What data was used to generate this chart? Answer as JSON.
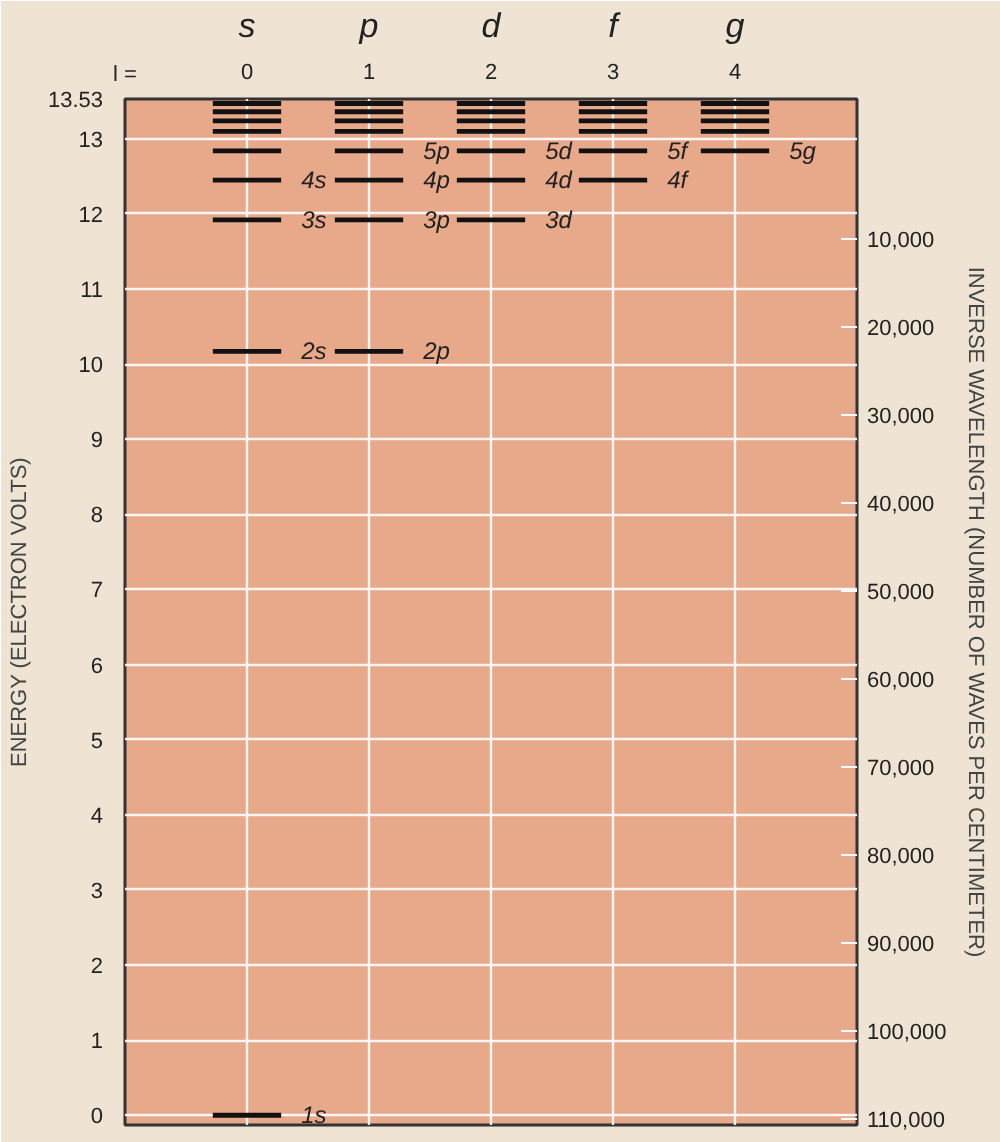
{
  "chart_data": {
    "type": "line",
    "ylabel": "ENERGY (ELECTRON VOLTS)",
    "y2label": "INVERSE WAVELENGTH (NUMBER OF WAVES PER CENTIMETER)",
    "xlabel": "l =",
    "annotations": [
      "s",
      "p",
      "d",
      "f",
      "g"
    ],
    "xlim": [
      -1,
      5
    ],
    "xticks": [
      0,
      1,
      2,
      3,
      4
    ],
    "ylim": [
      -0.13,
      13.53
    ],
    "yticks": [
      0,
      1,
      2,
      3,
      4,
      5,
      6,
      7,
      8,
      9,
      10,
      11,
      12,
      13,
      13.53
    ],
    "y2lim": [
      110700,
      -5860
    ],
    "y2ticks": [
      {
        "value": 10000,
        "label": "10,000"
      },
      {
        "value": 20000,
        "label": "20,000"
      },
      {
        "value": 30000,
        "label": "30,000"
      },
      {
        "value": 40000,
        "label": "40,000"
      },
      {
        "value": 50000,
        "label": "50,000"
      },
      {
        "value": 60000,
        "label": "60,000"
      },
      {
        "value": 70000,
        "label": "70,000"
      },
      {
        "value": 80000,
        "label": "80,000"
      },
      {
        "value": 90000,
        "label": "90,000"
      },
      {
        "value": 100000,
        "label": "100,000"
      },
      {
        "value": 110000,
        "label": "110,000"
      }
    ],
    "grid": true,
    "line_style": "solid",
    "series": [
      {
        "name": "1s",
        "color": "#111111",
        "x": [
          -0.28,
          0.28
        ],
        "values": [
          0,
          0
        ]
      },
      {
        "name": "2s",
        "color": "#111111",
        "x": [
          -0.28,
          0.28
        ],
        "values": [
          10.17,
          10.17
        ]
      },
      {
        "name": "2p",
        "color": "#111111",
        "x": [
          0.72,
          1.28
        ],
        "values": [
          10.17,
          10.17
        ]
      },
      {
        "name": "3s",
        "color": "#111111",
        "x": [
          -0.28,
          0.28
        ],
        "values": [
          11.92,
          11.92
        ]
      },
      {
        "name": "3p",
        "color": "#111111",
        "x": [
          0.72,
          1.28
        ],
        "values": [
          11.92,
          11.92
        ]
      },
      {
        "name": "3d",
        "color": "#111111",
        "x": [
          1.72,
          2.28
        ],
        "values": [
          11.92,
          11.92
        ]
      },
      {
        "name": "4s",
        "color": "#111111",
        "x": [
          -0.28,
          0.28
        ],
        "values": [
          12.45,
          12.45
        ]
      },
      {
        "name": "4p",
        "color": "#111111",
        "x": [
          0.72,
          1.28
        ],
        "values": [
          12.45,
          12.45
        ]
      },
      {
        "name": "4d",
        "color": "#111111",
        "x": [
          1.72,
          2.28
        ],
        "values": [
          12.45,
          12.45
        ]
      },
      {
        "name": "4f",
        "color": "#111111",
        "x": [
          2.72,
          3.28
        ],
        "values": [
          12.45,
          12.45
        ]
      },
      {
        "color": "#111111",
        "x": [
          -0.28,
          0.28
        ],
        "values": [
          12.84,
          12.84
        ]
      },
      {
        "name": "5p",
        "color": "#111111",
        "x": [
          0.72,
          1.28
        ],
        "values": [
          12.84,
          12.84
        ]
      },
      {
        "name": "5d",
        "color": "#111111",
        "x": [
          1.72,
          2.28
        ],
        "values": [
          12.84,
          12.84
        ]
      },
      {
        "name": "5f",
        "color": "#111111",
        "x": [
          2.72,
          3.28
        ],
        "values": [
          12.84,
          12.84
        ]
      },
      {
        "name": "5g",
        "color": "#111111",
        "x": [
          3.72,
          4.28
        ],
        "values": [
          12.84,
          12.84
        ]
      },
      {
        "color": "#111111",
        "x": [
          -0.28,
          0.28
        ],
        "values": [
          13.1,
          13.1
        ]
      },
      {
        "color": "#111111",
        "x": [
          0.72,
          1.28
        ],
        "values": [
          13.1,
          13.1
        ]
      },
      {
        "color": "#111111",
        "x": [
          1.72,
          2.28
        ],
        "values": [
          13.1,
          13.1
        ]
      },
      {
        "color": "#111111",
        "x": [
          2.72,
          3.28
        ],
        "values": [
          13.1,
          13.1
        ]
      },
      {
        "color": "#111111",
        "x": [
          3.72,
          4.28
        ],
        "values": [
          13.1,
          13.1
        ]
      },
      {
        "color": "#111111",
        "x": [
          -0.28,
          0.28
        ],
        "values": [
          13.24,
          13.24
        ]
      },
      {
        "color": "#111111",
        "x": [
          0.72,
          1.28
        ],
        "values": [
          13.24,
          13.24
        ]
      },
      {
        "color": "#111111",
        "x": [
          1.72,
          2.28
        ],
        "values": [
          13.24,
          13.24
        ]
      },
      {
        "color": "#111111",
        "x": [
          2.72,
          3.28
        ],
        "values": [
          13.24,
          13.24
        ]
      },
      {
        "color": "#111111",
        "x": [
          3.72,
          4.28
        ],
        "values": [
          13.24,
          13.24
        ]
      },
      {
        "color": "#111111",
        "x": [
          -0.28,
          0.28
        ],
        "values": [
          13.36,
          13.36
        ]
      },
      {
        "color": "#111111",
        "x": [
          0.72,
          1.28
        ],
        "values": [
          13.36,
          13.36
        ]
      },
      {
        "color": "#111111",
        "x": [
          1.72,
          2.28
        ],
        "values": [
          13.36,
          13.36
        ]
      },
      {
        "color": "#111111",
        "x": [
          2.72,
          3.28
        ],
        "values": [
          13.36,
          13.36
        ]
      },
      {
        "color": "#111111",
        "x": [
          3.72,
          4.28
        ],
        "values": [
          13.36,
          13.36
        ]
      },
      {
        "color": "#111111",
        "x": [
          -0.28,
          0.28
        ],
        "values": [
          13.47,
          13.47
        ]
      },
      {
        "color": "#111111",
        "x": [
          0.72,
          1.28
        ],
        "values": [
          13.47,
          13.47
        ]
      },
      {
        "color": "#111111",
        "x": [
          1.72,
          2.28
        ],
        "values": [
          13.47,
          13.47
        ]
      },
      {
        "color": "#111111",
        "x": [
          2.72,
          3.28
        ],
        "values": [
          13.47,
          13.47
        ]
      },
      {
        "color": "#111111",
        "x": [
          3.72,
          4.28
        ],
        "values": [
          13.47,
          13.47
        ]
      }
    ]
  }
}
